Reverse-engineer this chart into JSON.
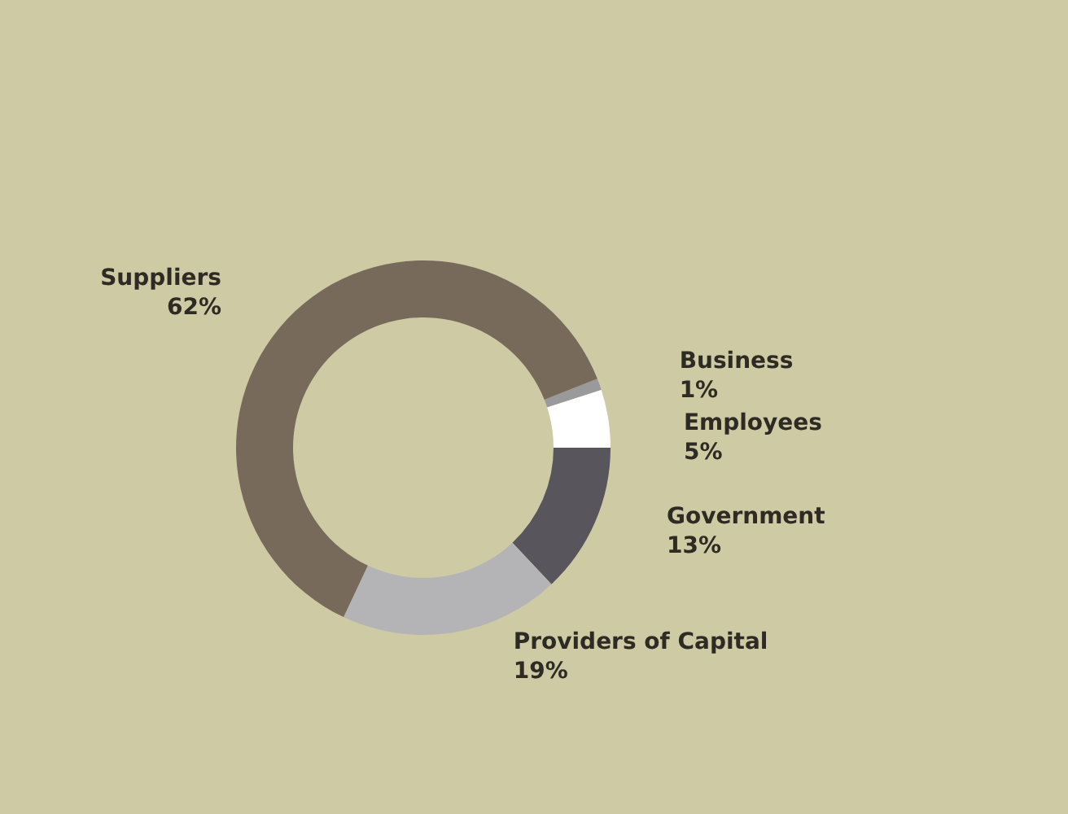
{
  "chart_data": {
    "type": "donut",
    "categories": [
      "Business",
      "Employees",
      "Government",
      "Providers of Capital",
      "Suppliers"
    ],
    "values": [
      1,
      5,
      13,
      19,
      62
    ],
    "value_labels": [
      "1%",
      "5%",
      "13%",
      "19%",
      "62%"
    ],
    "colors": [
      "#9a9a9c",
      "#ffffff",
      "#58565c",
      "#b4b4b6",
      "#786a5a"
    ],
    "legend": false
  }
}
